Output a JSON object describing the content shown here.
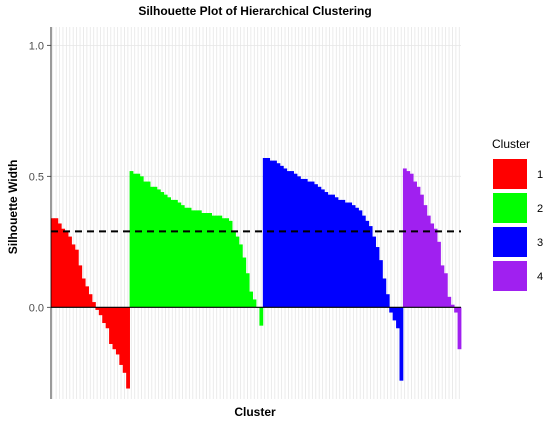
{
  "chart_data": {
    "type": "bar",
    "title": "Silhouette Plot of Hierarchical Clustering",
    "xlabel": "Cluster",
    "ylabel": "Silhouette Width",
    "ylim": [
      -0.35,
      1.07
    ],
    "yticks": [
      "0.0",
      "0.5",
      "1.0"
    ],
    "grid": true,
    "legend": {
      "title": "Cluster",
      "position": "right"
    },
    "average_silhouette_width": 0.29,
    "series": [
      {
        "name": "1",
        "color": "#FF0000",
        "values": [
          0.34,
          0.34,
          0.32,
          0.3,
          0.29,
          0.27,
          0.24,
          0.22,
          0.16,
          0.11,
          0.08,
          0.05,
          0.02,
          -0.01,
          -0.03,
          -0.06,
          -0.08,
          -0.14,
          -0.16,
          -0.18,
          -0.22,
          -0.25,
          -0.31
        ]
      },
      {
        "name": "2",
        "color": "#00FF00",
        "values": [
          0.52,
          0.51,
          0.51,
          0.5,
          0.48,
          0.48,
          0.46,
          0.46,
          0.45,
          0.44,
          0.43,
          0.42,
          0.41,
          0.41,
          0.4,
          0.39,
          0.38,
          0.38,
          0.37,
          0.37,
          0.37,
          0.36,
          0.36,
          0.36,
          0.35,
          0.35,
          0.35,
          0.34,
          0.34,
          0.33,
          0.29,
          0.27,
          0.24,
          0.19,
          0.13,
          0.06,
          0.03,
          0.0,
          -0.07
        ]
      },
      {
        "name": "3",
        "color": "#0000FF",
        "values": [
          0.57,
          0.57,
          0.56,
          0.56,
          0.55,
          0.54,
          0.53,
          0.52,
          0.52,
          0.51,
          0.5,
          0.49,
          0.49,
          0.48,
          0.48,
          0.47,
          0.46,
          0.45,
          0.44,
          0.43,
          0.43,
          0.42,
          0.41,
          0.41,
          0.4,
          0.4,
          0.39,
          0.38,
          0.37,
          0.35,
          0.33,
          0.31,
          0.27,
          0.23,
          0.18,
          0.11,
          0.05,
          -0.02,
          -0.05,
          -0.08,
          -0.28
        ]
      },
      {
        "name": "4",
        "color": "#A020F0",
        "values": [
          0.53,
          0.52,
          0.51,
          0.48,
          0.46,
          0.43,
          0.39,
          0.35,
          0.32,
          0.3,
          0.25,
          0.16,
          0.13,
          0.04,
          0.01,
          -0.02,
          -0.16
        ]
      }
    ]
  }
}
